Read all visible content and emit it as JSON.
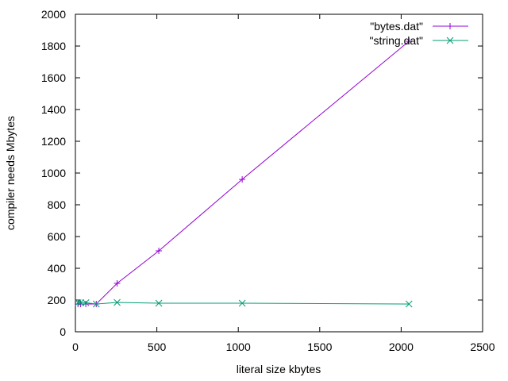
{
  "chart_data": {
    "type": "line",
    "xlabel": "literal size kbytes",
    "ylabel": "compiler needs Mbytes",
    "xlim": [
      0,
      2500
    ],
    "ylim": [
      0,
      2000
    ],
    "xticks": [
      "0",
      "500",
      "1000",
      "1500",
      "2000",
      "2500"
    ],
    "yticks": [
      "0",
      "200",
      "400",
      "600",
      "800",
      "1000",
      "1200",
      "1400",
      "1600",
      "1800",
      "2000"
    ],
    "grid": false,
    "legend_position": "top-right",
    "series": [
      {
        "name": "\"bytes.dat\"",
        "color": "#9400d3",
        "marker": "plus",
        "points": [
          [
            16,
            175
          ],
          [
            32,
            175
          ],
          [
            64,
            175
          ],
          [
            128,
            175
          ],
          [
            256,
            305
          ],
          [
            512,
            510
          ],
          [
            1024,
            960
          ],
          [
            2048,
            1830
          ]
        ]
      },
      {
        "name": "\"string.dat\"",
        "color": "#009e73",
        "marker": "cross",
        "points": [
          [
            16,
            183
          ],
          [
            32,
            183
          ],
          [
            64,
            183
          ],
          [
            128,
            175
          ],
          [
            256,
            185
          ],
          [
            512,
            180
          ],
          [
            1024,
            180
          ],
          [
            2048,
            175
          ]
        ]
      }
    ]
  }
}
